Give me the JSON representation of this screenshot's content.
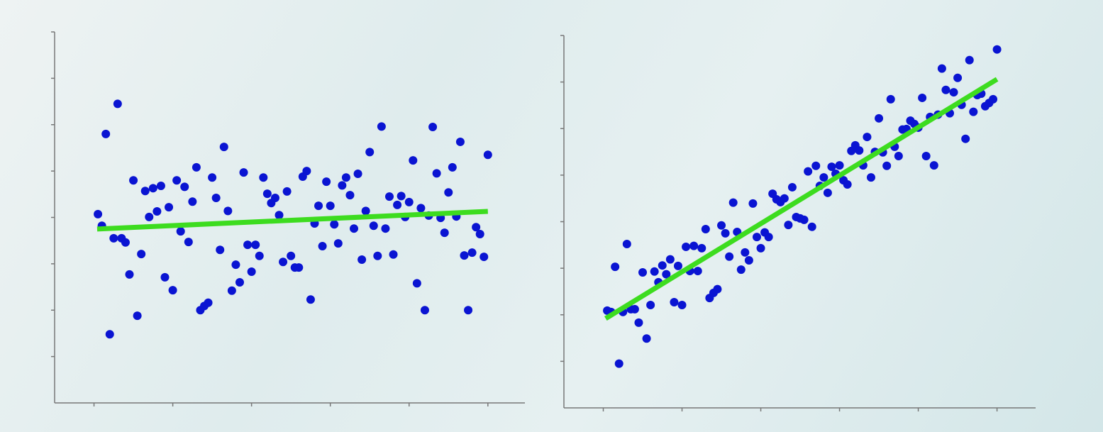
{
  "chart_data": [
    {
      "type": "scatter",
      "color": "#0a14d2",
      "x": [
        1.05,
        1.1,
        1.15,
        1.2,
        1.25,
        1.3,
        1.35,
        1.4,
        1.45,
        1.5,
        1.55,
        1.6,
        1.65,
        1.7,
        1.75,
        1.8,
        1.85,
        1.9,
        1.95,
        2,
        2.05,
        2.1,
        2.15,
        2.2,
        2.25,
        2.3,
        2.35,
        2.4,
        2.45,
        2.5,
        2.55,
        2.6,
        2.65,
        2.7,
        2.75,
        2.8,
        2.85,
        2.9,
        2.95,
        3,
        3.05,
        3.1,
        3.15,
        3.2,
        3.25,
        3.3,
        3.35,
        3.4,
        3.45,
        3.5,
        3.55,
        3.6,
        3.65,
        3.7,
        3.75,
        3.8,
        3.85,
        3.9,
        3.95,
        4,
        4.05,
        4.1,
        4.15,
        4.2,
        4.25,
        4.3,
        4.35,
        4.4,
        4.45,
        4.5,
        4.55,
        4.6,
        4.65,
        4.7,
        4.75,
        4.8,
        4.85,
        4.9,
        4.95,
        5,
        5.05,
        5.1,
        5.15,
        5.2,
        5.25,
        5.3,
        5.35,
        5.4,
        5.45,
        5.5,
        5.55,
        5.6,
        5.65,
        5.7,
        5.75,
        5.8,
        5.85,
        5.9,
        5.95,
        6
      ],
      "y": [
        4.07,
        3.82,
        5.8,
        1.48,
        3.55,
        6.45,
        3.55,
        3.46,
        2.77,
        4.8,
        1.88,
        3.21,
        4.57,
        4.01,
        4.63,
        4.13,
        4.68,
        2.71,
        4.22,
        2.43,
        4.8,
        3.7,
        4.66,
        3.47,
        4.34,
        5.08,
        2,
        2.09,
        2.16,
        4.86,
        4.42,
        3.3,
        5.52,
        4.14,
        2.42,
        2.98,
        2.6,
        4.97,
        3.41,
        2.83,
        3.41,
        3.17,
        4.86,
        4.51,
        4.31,
        4.42,
        4.05,
        3.04,
        4.56,
        3.17,
        2.92,
        2.92,
        4.88,
        5,
        2.23,
        3.87,
        4.25,
        3.38,
        4.77,
        4.25,
        3.85,
        3.44,
        4.69,
        4.86,
        4.48,
        3.76,
        4.94,
        3.09,
        4.14,
        5.41,
        3.82,
        3.17,
        5.96,
        3.76,
        4.45,
        3.2,
        4.27,
        4.46,
        4.01,
        4.33,
        5.23,
        2.58,
        4.2,
        2,
        4.04,
        5.95,
        4.95,
        3.99,
        3.67,
        4.54,
        5.08,
        4.02,
        5.63,
        3.18,
        2,
        3.24,
        3.79,
        3.64,
        3.15,
        5.35
      ],
      "fit_line": {
        "x": [
          1.04,
          6.0
        ],
        "y": [
          3.75,
          4.13
        ],
        "color": "#3ddc1f"
      },
      "xlim": [
        0.5,
        6.47
      ],
      "ylim": [
        0,
        8
      ],
      "xticks": [
        1,
        2,
        3,
        4,
        5,
        6
      ],
      "yticks": [
        1,
        2,
        3,
        4,
        5,
        6,
        7,
        8
      ]
    },
    {
      "type": "scatter",
      "color": "#0a14d2",
      "x": [
        1.05,
        1.1,
        1.15,
        1.2,
        1.25,
        1.3,
        1.35,
        1.4,
        1.45,
        1.5,
        1.55,
        1.6,
        1.65,
        1.7,
        1.75,
        1.8,
        1.85,
        1.9,
        1.95,
        2,
        2.05,
        2.1,
        2.15,
        2.2,
        2.25,
        2.3,
        2.35,
        2.4,
        2.45,
        2.5,
        2.55,
        2.6,
        2.65,
        2.7,
        2.75,
        2.8,
        2.85,
        2.9,
        2.95,
        3,
        3.05,
        3.1,
        3.15,
        3.2,
        3.25,
        3.3,
        3.35,
        3.4,
        3.45,
        3.5,
        3.55,
        3.6,
        3.65,
        3.7,
        3.75,
        3.8,
        3.85,
        3.9,
        3.95,
        4,
        4.05,
        4.1,
        4.15,
        4.2,
        4.25,
        4.3,
        4.35,
        4.4,
        4.45,
        4.5,
        4.55,
        4.6,
        4.65,
        4.7,
        4.75,
        4.8,
        4.85,
        4.9,
        4.95,
        5,
        5.05,
        5.1,
        5.15,
        5.2,
        5.25,
        5.3,
        5.35,
        5.4,
        5.45,
        5.5,
        5.55,
        5.6,
        5.65,
        5.7,
        5.75,
        5.8,
        5.85,
        5.9,
        5.95,
        6
      ],
      "y": [
        2.09,
        2.06,
        3.03,
        0.95,
        2.06,
        3.52,
        2.12,
        2.12,
        1.83,
        2.91,
        1.49,
        2.21,
        2.93,
        2.7,
        3.06,
        2.87,
        3.19,
        2.27,
        3.05,
        2.21,
        3.46,
        2.94,
        3.48,
        2.94,
        3.43,
        3.84,
        2.36,
        2.47,
        2.55,
        3.92,
        3.75,
        3.25,
        4.41,
        3.78,
        2.97,
        3.34,
        3.17,
        4.39,
        3.67,
        3.43,
        3.77,
        3.67,
        4.6,
        4.48,
        4.42,
        4.5,
        3.93,
        4.74,
        4.1,
        4.07,
        4.04,
        5.08,
        3.89,
        5.2,
        4.77,
        4.95,
        4.62,
        5.18,
        5.03,
        5.21,
        4.89,
        4.8,
        5.52,
        5.64,
        5.53,
        5.21,
        5.82,
        4.95,
        5.5,
        6.22,
        5.49,
        5.2,
        6.63,
        5.61,
        5.41,
        5.98,
        5.99,
        6.17,
        6.1,
        6.02,
        6.66,
        5.41,
        6.25,
        5.21,
        6.3,
        7.29,
        6.83,
        6.33,
        6.78,
        7.09,
        6.51,
        5.78,
        7.47,
        6.36,
        6.72,
        6.75,
        6.48,
        6.55,
        6.63,
        7.7
      ],
      "fit_line": {
        "x": [
          1.03,
          6.0
        ],
        "y": [
          1.92,
          7.06
        ],
        "color": "#3ddc1f"
      },
      "xlim": [
        0.5,
        6.49
      ],
      "ylim": [
        0,
        8
      ],
      "xticks": [
        1,
        2,
        3,
        4,
        5,
        6
      ],
      "yticks": [
        1,
        2,
        3,
        4,
        5,
        6,
        7,
        8
      ]
    }
  ]
}
